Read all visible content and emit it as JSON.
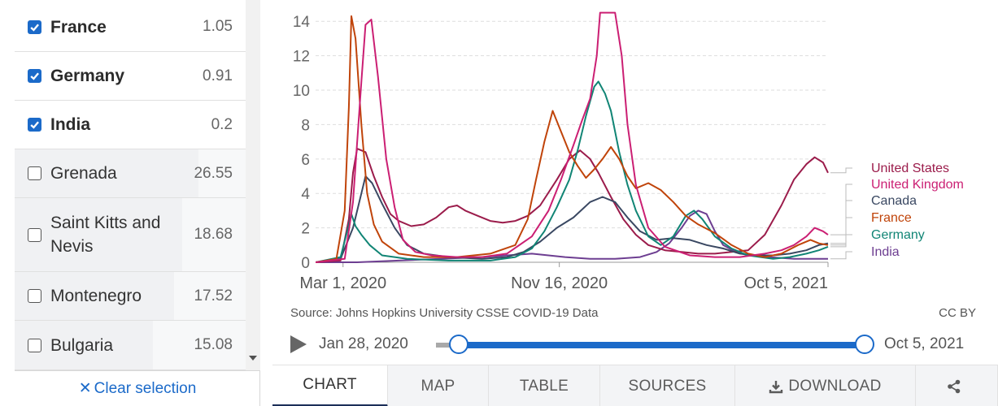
{
  "sidebar": {
    "countries": [
      {
        "name": "France",
        "value": "1.05",
        "selected": true
      },
      {
        "name": "Germany",
        "value": "0.91",
        "selected": true
      },
      {
        "name": "India",
        "value": "0.2",
        "selected": true
      },
      {
        "name": "Grenada",
        "value": "26.55",
        "selected": false
      },
      {
        "name": "Saint Kitts and Nevis",
        "value": "18.68",
        "selected": false
      },
      {
        "name": "Montenegro",
        "value": "17.52",
        "selected": false
      },
      {
        "name": "Bulgaria",
        "value": "15.08",
        "selected": false
      }
    ],
    "clear_selection_label": "Clear selection",
    "clear_selection_icon": "x-icon"
  },
  "chart_data": {
    "type": "line",
    "title": "",
    "xlabel": "",
    "ylabel": "",
    "y_ticks": [
      "0",
      "2",
      "4",
      "6",
      "8",
      "10",
      "12",
      "14"
    ],
    "ylim": [
      0,
      14.5
    ],
    "x_ticks": [
      "Mar 1, 2020",
      "Nov 16, 2020",
      "Oct 5, 2021"
    ],
    "x_range_days": [
      0,
      616
    ],
    "x_tick_days": [
      33,
      293,
      616
    ],
    "grid": true,
    "series": [
      {
        "name": "United States",
        "color": "#9b1c4b",
        "points": [
          [
            0,
            0
          ],
          [
            30,
            0.1
          ],
          [
            40,
            2.5
          ],
          [
            45,
            5.2
          ],
          [
            50,
            6.6
          ],
          [
            60,
            6.4
          ],
          [
            70,
            5.0
          ],
          [
            80,
            3.8
          ],
          [
            90,
            2.8
          ],
          [
            100,
            2.4
          ],
          [
            115,
            2.1
          ],
          [
            130,
            2.2
          ],
          [
            145,
            2.6
          ],
          [
            160,
            3.2
          ],
          [
            170,
            3.3
          ],
          [
            180,
            3.0
          ],
          [
            195,
            2.7
          ],
          [
            210,
            2.4
          ],
          [
            225,
            2.3
          ],
          [
            240,
            2.4
          ],
          [
            255,
            2.7
          ],
          [
            270,
            3.3
          ],
          [
            290,
            4.8
          ],
          [
            305,
            6.0
          ],
          [
            318,
            6.5
          ],
          [
            330,
            6.0
          ],
          [
            340,
            5.2
          ],
          [
            355,
            3.8
          ],
          [
            370,
            2.5
          ],
          [
            385,
            1.6
          ],
          [
            400,
            1.0
          ],
          [
            420,
            0.7
          ],
          [
            440,
            0.6
          ],
          [
            460,
            0.5
          ],
          [
            480,
            0.5
          ],
          [
            500,
            0.6
          ],
          [
            520,
            0.7
          ],
          [
            540,
            1.6
          ],
          [
            560,
            3.3
          ],
          [
            575,
            4.8
          ],
          [
            590,
            5.7
          ],
          [
            600,
            6.1
          ],
          [
            610,
            5.8
          ],
          [
            616,
            5.2
          ]
        ]
      },
      {
        "name": "United Kingdom",
        "color": "#cb1f73",
        "points": [
          [
            0,
            0
          ],
          [
            35,
            0.2
          ],
          [
            45,
            3.5
          ],
          [
            55,
            10.5
          ],
          [
            60,
            13.8
          ],
          [
            67,
            14.1
          ],
          [
            75,
            10.8
          ],
          [
            85,
            6.0
          ],
          [
            95,
            3.2
          ],
          [
            105,
            1.3
          ],
          [
            120,
            0.6
          ],
          [
            140,
            0.4
          ],
          [
            170,
            0.3
          ],
          [
            200,
            0.3
          ],
          [
            230,
            0.5
          ],
          [
            260,
            1.5
          ],
          [
            280,
            3.0
          ],
          [
            295,
            4.8
          ],
          [
            310,
            6.8
          ],
          [
            320,
            8.2
          ],
          [
            330,
            9.5
          ],
          [
            338,
            12.0
          ],
          [
            342,
            14.5
          ],
          [
            350,
            14.5
          ],
          [
            360,
            14.5
          ],
          [
            368,
            12.0
          ],
          [
            375,
            8.0
          ],
          [
            385,
            4.5
          ],
          [
            400,
            2.0
          ],
          [
            420,
            0.9
          ],
          [
            450,
            0.4
          ],
          [
            480,
            0.3
          ],
          [
            510,
            0.3
          ],
          [
            540,
            0.5
          ],
          [
            560,
            0.7
          ],
          [
            575,
            1.0
          ],
          [
            590,
            1.5
          ],
          [
            600,
            2.0
          ],
          [
            610,
            1.8
          ],
          [
            616,
            1.6
          ]
        ]
      },
      {
        "name": "Canada",
        "color": "#3a4862",
        "points": [
          [
            0,
            0
          ],
          [
            30,
            0.2
          ],
          [
            45,
            2.0
          ],
          [
            55,
            4.0
          ],
          [
            60,
            5.0
          ],
          [
            68,
            4.6
          ],
          [
            80,
            3.4
          ],
          [
            95,
            2.0
          ],
          [
            110,
            1.0
          ],
          [
            130,
            0.5
          ],
          [
            160,
            0.3
          ],
          [
            200,
            0.2
          ],
          [
            230,
            0.3
          ],
          [
            250,
            0.6
          ],
          [
            270,
            1.2
          ],
          [
            290,
            2.0
          ],
          [
            310,
            2.6
          ],
          [
            330,
            3.5
          ],
          [
            345,
            3.8
          ],
          [
            360,
            3.5
          ],
          [
            375,
            2.6
          ],
          [
            390,
            1.8
          ],
          [
            410,
            1.3
          ],
          [
            430,
            1.4
          ],
          [
            450,
            1.3
          ],
          [
            470,
            1.0
          ],
          [
            490,
            0.8
          ],
          [
            510,
            0.5
          ],
          [
            530,
            0.4
          ],
          [
            550,
            0.4
          ],
          [
            570,
            0.5
          ],
          [
            590,
            0.7
          ],
          [
            605,
            1.0
          ],
          [
            616,
            1.1
          ]
        ]
      },
      {
        "name": "France",
        "color": "#c0440a",
        "points": [
          [
            0,
            0
          ],
          [
            25,
            0.2
          ],
          [
            35,
            3.0
          ],
          [
            40,
            9.0
          ],
          [
            43,
            14.3
          ],
          [
            48,
            13.0
          ],
          [
            55,
            8.0
          ],
          [
            62,
            4.0
          ],
          [
            70,
            2.2
          ],
          [
            80,
            1.2
          ],
          [
            100,
            0.5
          ],
          [
            130,
            0.3
          ],
          [
            170,
            0.3
          ],
          [
            210,
            0.5
          ],
          [
            240,
            1.0
          ],
          [
            255,
            2.5
          ],
          [
            265,
            4.8
          ],
          [
            275,
            7.0
          ],
          [
            285,
            8.8
          ],
          [
            295,
            7.6
          ],
          [
            305,
            6.4
          ],
          [
            315,
            5.6
          ],
          [
            325,
            4.9
          ],
          [
            335,
            5.4
          ],
          [
            345,
            6.0
          ],
          [
            355,
            6.7
          ],
          [
            365,
            6.0
          ],
          [
            375,
            5.0
          ],
          [
            385,
            4.3
          ],
          [
            400,
            4.6
          ],
          [
            415,
            4.2
          ],
          [
            430,
            3.5
          ],
          [
            445,
            2.7
          ],
          [
            460,
            2.2
          ],
          [
            480,
            1.7
          ],
          [
            500,
            1.0
          ],
          [
            520,
            0.5
          ],
          [
            540,
            0.3
          ],
          [
            560,
            0.5
          ],
          [
            580,
            1.0
          ],
          [
            595,
            1.3
          ],
          [
            605,
            1.1
          ],
          [
            616,
            1.0
          ]
        ]
      },
      {
        "name": "Germany",
        "color": "#118575",
        "points": [
          [
            0,
            0
          ],
          [
            30,
            0.3
          ],
          [
            38,
            1.8
          ],
          [
            43,
            2.8
          ],
          [
            48,
            2.1
          ],
          [
            55,
            1.6
          ],
          [
            65,
            1.0
          ],
          [
            80,
            0.4
          ],
          [
            110,
            0.2
          ],
          [
            160,
            0.1
          ],
          [
            210,
            0.1
          ],
          [
            240,
            0.3
          ],
          [
            260,
            0.8
          ],
          [
            275,
            1.8
          ],
          [
            290,
            3.2
          ],
          [
            305,
            4.8
          ],
          [
            315,
            6.5
          ],
          [
            325,
            8.5
          ],
          [
            335,
            10.2
          ],
          [
            340,
            10.5
          ],
          [
            348,
            9.8
          ],
          [
            355,
            8.8
          ],
          [
            365,
            6.4
          ],
          [
            375,
            4.5
          ],
          [
            385,
            3.0
          ],
          [
            400,
            1.5
          ],
          [
            415,
            1.0
          ],
          [
            430,
            1.5
          ],
          [
            445,
            2.7
          ],
          [
            455,
            3.0
          ],
          [
            465,
            2.5
          ],
          [
            480,
            1.5
          ],
          [
            500,
            0.8
          ],
          [
            520,
            0.4
          ],
          [
            550,
            0.2
          ],
          [
            570,
            0.3
          ],
          [
            590,
            0.5
          ],
          [
            605,
            0.7
          ],
          [
            616,
            0.9
          ]
        ]
      },
      {
        "name": "India",
        "color": "#6d3e91",
        "points": [
          [
            0,
            0
          ],
          [
            50,
            0.0
          ],
          [
            100,
            0.1
          ],
          [
            150,
            0.2
          ],
          [
            200,
            0.3
          ],
          [
            230,
            0.4
          ],
          [
            260,
            0.5
          ],
          [
            280,
            0.4
          ],
          [
            300,
            0.3
          ],
          [
            330,
            0.2
          ],
          [
            360,
            0.2
          ],
          [
            390,
            0.3
          ],
          [
            410,
            0.6
          ],
          [
            425,
            1.1
          ],
          [
            440,
            2.0
          ],
          [
            450,
            2.7
          ],
          [
            460,
            3.0
          ],
          [
            470,
            2.8
          ],
          [
            480,
            1.8
          ],
          [
            490,
            1.0
          ],
          [
            505,
            0.6
          ],
          [
            520,
            0.4
          ],
          [
            545,
            0.3
          ],
          [
            575,
            0.2
          ],
          [
            600,
            0.2
          ],
          [
            616,
            0.2
          ]
        ]
      }
    ]
  },
  "source_label": "Source: Johns Hopkins University CSSE COVID-19 Data",
  "license": "CC BY",
  "timeline": {
    "start": "Jan 28, 2020",
    "end": "Oct 5, 2021",
    "play_icon": "play-icon"
  },
  "tabs": [
    {
      "label": "CHART",
      "active": true,
      "icon": ""
    },
    {
      "label": "MAP",
      "active": false,
      "icon": ""
    },
    {
      "label": "TABLE",
      "active": false,
      "icon": ""
    },
    {
      "label": "SOURCES",
      "active": false,
      "icon": ""
    },
    {
      "label": "DOWNLOAD",
      "active": false,
      "icon": "download-icon"
    },
    {
      "label": "",
      "active": false,
      "icon": "share-icon"
    }
  ]
}
